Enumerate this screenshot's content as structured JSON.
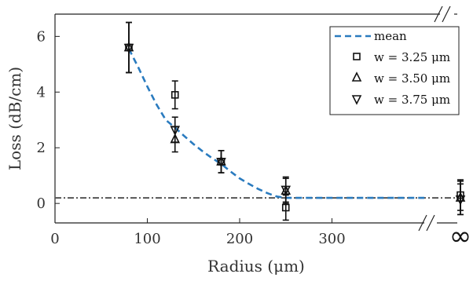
{
  "chart_data": {
    "type": "scatter",
    "xlabel": "Radius (μm)",
    "ylabel": "Loss (dB/cm)",
    "xlim": [
      0,
      400
    ],
    "ylim": [
      -0.7,
      6.8
    ],
    "x_ticks": [
      0,
      100,
      200,
      300
    ],
    "y_ticks": [
      0,
      2,
      4,
      6
    ],
    "x_break_label": "∞",
    "legend_position": "top-right",
    "baseline": 0.2,
    "series": [
      {
        "name": "mean",
        "kind": "line",
        "color": "#2a7bbf",
        "x": [
          80,
          90,
          100,
          110,
          120,
          130,
          140,
          150,
          160,
          170,
          180,
          190,
          200,
          210,
          220,
          230,
          240,
          250,
          260,
          270,
          280,
          290,
          300,
          310,
          320,
          330,
          340,
          350,
          360,
          370,
          380,
          390,
          400
        ],
        "y": [
          5.55,
          4.9,
          4.2,
          3.55,
          3.0,
          2.72,
          2.42,
          2.13,
          1.87,
          1.63,
          1.42,
          1.15,
          0.9,
          0.7,
          0.52,
          0.37,
          0.25,
          0.2,
          0.2,
          0.2,
          0.2,
          0.2,
          0.2,
          0.2,
          0.2,
          0.2,
          0.2,
          0.2,
          0.2,
          0.2,
          0.2,
          0.2,
          0.2
        ]
      },
      {
        "name": "w = 3.25 μm",
        "marker": "square",
        "x": [
          80,
          130,
          180,
          250,
          "∞"
        ],
        "y": [
          5.6,
          3.9,
          1.5,
          -0.15,
          0.3
        ],
        "err": [
          0.9,
          0.5,
          0.4,
          0.45,
          0.55
        ]
      },
      {
        "name": "w = 3.50 μm",
        "marker": "triangle-up",
        "x": [
          80,
          130,
          180,
          250,
          "∞"
        ],
        "y": [
          5.6,
          2.3,
          1.5,
          0.45,
          0.2
        ],
        "err": [
          0.9,
          0.45,
          0.4,
          0.45,
          0.6
        ]
      },
      {
        "name": "w = 3.75 μm",
        "marker": "triangle-down",
        "x": [
          80,
          130,
          180,
          250,
          "∞"
        ],
        "y": [
          5.6,
          2.65,
          1.5,
          0.5,
          0.15
        ],
        "err": [
          0.9,
          0.45,
          0.4,
          0.45,
          0.55
        ]
      }
    ]
  }
}
